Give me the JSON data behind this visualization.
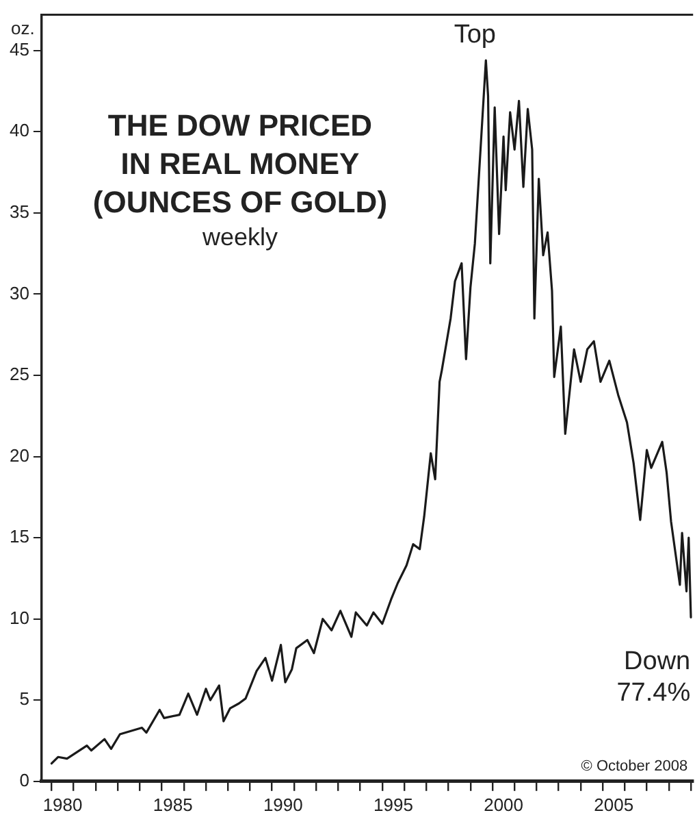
{
  "chart_data": {
    "type": "line",
    "title": "THE DOW PRICED\nIN REAL MONEY\n(OUNCES OF GOLD)",
    "subtitle": "weekly",
    "ylabel": "oz.",
    "annotations": [
      {
        "text": "Top",
        "x": 1999.7,
        "y": 44.4
      },
      {
        "text": "Down\n77.4%",
        "x": 2009.0,
        "y": 10.1
      },
      "© October 2008"
    ],
    "x": [
      1980.0,
      1980.3,
      1980.7,
      1981.6,
      1981.8,
      1982.4,
      1982.7,
      1983.1,
      1984.1,
      1984.3,
      1984.9,
      1985.1,
      1985.8,
      1986.2,
      1986.6,
      1987.0,
      1987.2,
      1987.6,
      1987.8,
      1988.1,
      1988.5,
      1988.8,
      1989.3,
      1989.7,
      1990.0,
      1990.4,
      1990.6,
      1990.9,
      1991.1,
      1991.6,
      1991.9,
      1992.3,
      1992.7,
      1993.1,
      1993.6,
      1993.8,
      1994.3,
      1994.6,
      1995.0,
      1995.4,
      1995.7,
      1996.1,
      1996.4,
      1996.7,
      1996.9,
      1997.2,
      1997.4,
      1997.6,
      1997.7,
      1998.1,
      1998.3,
      1998.6,
      1998.8,
      1999.0,
      1999.2,
      1999.7,
      1999.8,
      1999.9,
      2000.1,
      2000.3,
      2000.5,
      2000.6,
      2000.8,
      2001.0,
      2001.2,
      2001.4,
      2001.6,
      2001.8,
      2001.9,
      2002.1,
      2002.3,
      2002.5,
      2002.7,
      2002.8,
      2003.1,
      2003.3,
      2003.7,
      2004.0,
      2004.3,
      2004.6,
      2004.9,
      2005.3,
      2005.7,
      2006.1,
      2006.4,
      2006.7,
      2007.0,
      2007.2,
      2007.7,
      2007.9,
      2008.1,
      2008.5,
      2008.6,
      2008.8,
      2008.9,
      2009.0
    ],
    "values": [
      1.1,
      1.5,
      1.4,
      2.2,
      1.9,
      2.6,
      2.0,
      2.9,
      3.3,
      3.0,
      4.4,
      3.9,
      4.1,
      5.4,
      4.1,
      5.7,
      5.0,
      5.9,
      3.7,
      4.5,
      4.8,
      5.1,
      6.8,
      7.6,
      6.2,
      8.4,
      6.1,
      6.9,
      8.2,
      8.7,
      7.9,
      10.0,
      9.3,
      10.5,
      8.9,
      10.4,
      9.6,
      10.4,
      9.7,
      11.2,
      12.2,
      13.3,
      14.6,
      14.3,
      16.3,
      20.2,
      18.6,
      24.6,
      25.3,
      28.5,
      30.8,
      31.9,
      26.0,
      30.4,
      33.1,
      44.4,
      42.2,
      31.9,
      41.5,
      33.7,
      39.7,
      36.4,
      41.2,
      38.9,
      41.9,
      36.6,
      41.4,
      38.9,
      28.5,
      37.1,
      32.4,
      33.8,
      30.2,
      24.9,
      28.0,
      21.4,
      26.6,
      24.6,
      26.6,
      27.1,
      24.6,
      25.9,
      23.8,
      22.1,
      19.6,
      16.1,
      20.4,
      19.3,
      20.9,
      19.0,
      16.0,
      12.1,
      15.3,
      11.7,
      15.0,
      10.1
    ],
    "color": "#1a1a1a",
    "xlim": [
      1979.55,
      2009.1
    ],
    "ylim": [
      0,
      47.2
    ],
    "xticks": [
      {
        "value": 1980,
        "label": null
      },
      {
        "value": 1980.5,
        "label": "1980"
      },
      {
        "value": 1981,
        "label": null
      },
      {
        "value": 1982,
        "label": null
      },
      {
        "value": 1983,
        "label": null
      },
      {
        "value": 1984,
        "label": null
      },
      {
        "value": 1985,
        "label": null
      },
      {
        "value": 1985.5,
        "label": "1985"
      },
      {
        "value": 1986,
        "label": null
      },
      {
        "value": 1987,
        "label": null
      },
      {
        "value": 1988,
        "label": null
      },
      {
        "value": 1989,
        "label": null
      },
      {
        "value": 1990,
        "label": null
      },
      {
        "value": 1990.5,
        "label": "1990"
      },
      {
        "value": 1991,
        "label": null
      },
      {
        "value": 1992,
        "label": null
      },
      {
        "value": 1993,
        "label": null
      },
      {
        "value": 1994,
        "label": null
      },
      {
        "value": 1995,
        "label": null
      },
      {
        "value": 1995.5,
        "label": "1995"
      },
      {
        "value": 1996,
        "label": null
      },
      {
        "value": 1997,
        "label": null
      },
      {
        "value": 1998,
        "label": null
      },
      {
        "value": 1999,
        "label": null
      },
      {
        "value": 2000,
        "label": null
      },
      {
        "value": 2000.5,
        "label": "2000"
      },
      {
        "value": 2001,
        "label": null
      },
      {
        "value": 2002,
        "label": null
      },
      {
        "value": 2003,
        "label": null
      },
      {
        "value": 2004,
        "label": null
      },
      {
        "value": 2005,
        "label": null
      },
      {
        "value": 2005.5,
        "label": "2005"
      },
      {
        "value": 2006,
        "label": null
      },
      {
        "value": 2007,
        "label": null
      },
      {
        "value": 2008,
        "label": null
      },
      {
        "value": 2009,
        "label": null
      }
    ],
    "yticks": [
      0,
      5,
      10,
      15,
      20,
      25,
      30,
      35,
      40,
      45
    ],
    "grid": false,
    "legend": false,
    "marker": "none",
    "line_style": "solid"
  }
}
